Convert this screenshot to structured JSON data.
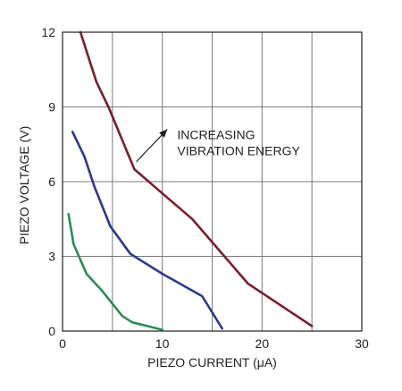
{
  "chart_data": {
    "type": "line",
    "title": "",
    "xlabel": "PIEZO CURRENT (μA)",
    "ylabel": "PIEZO VOLTAGE (V)",
    "xlim": [
      0,
      30
    ],
    "ylim": [
      0,
      12
    ],
    "xticks": [
      0,
      10,
      20,
      30
    ],
    "yticks": [
      0,
      3,
      6,
      9,
      12
    ],
    "xtick_labels": [
      "0",
      "10",
      "20",
      "30"
    ],
    "ytick_labels": [
      "0",
      "3",
      "6",
      "9",
      "12"
    ],
    "x_grid_step": 5,
    "y_grid_step": 3,
    "grid": true,
    "legend": "none",
    "series": [
      {
        "color": "#7b1c2c",
        "points": [
          [
            1.8,
            12
          ],
          [
            2.6,
            11
          ],
          [
            3.4,
            10
          ],
          [
            4.6,
            9
          ],
          [
            7.2,
            6.5
          ],
          [
            9.5,
            5.7
          ],
          [
            13,
            4.5
          ],
          [
            18.6,
            1.9
          ],
          [
            25,
            0.2
          ]
        ]
      },
      {
        "color": "#2b3990",
        "points": [
          [
            1,
            8
          ],
          [
            2.2,
            7
          ],
          [
            3.2,
            5.8
          ],
          [
            4.8,
            4.2
          ],
          [
            6.8,
            3.1
          ],
          [
            10,
            2.3
          ],
          [
            14,
            1.4
          ],
          [
            16,
            0.1
          ]
        ]
      },
      {
        "color": "#2e8b57",
        "points": [
          [
            0.6,
            4.7
          ],
          [
            1.1,
            3.5
          ],
          [
            2.4,
            2.3
          ],
          [
            4,
            1.6
          ],
          [
            5,
            1.1
          ],
          [
            6,
            0.6
          ],
          [
            7,
            0.35
          ],
          [
            8.5,
            0.2
          ],
          [
            10,
            0.05
          ]
        ]
      }
    ],
    "annotation": {
      "lines": [
        "INCREASING",
        "VIBRATION ENERGY"
      ],
      "text_anchor": [
        11.5,
        7.7
      ],
      "arrow_from": [
        7.4,
        6.8
      ],
      "arrow_to": [
        10.5,
        8.1
      ]
    }
  }
}
